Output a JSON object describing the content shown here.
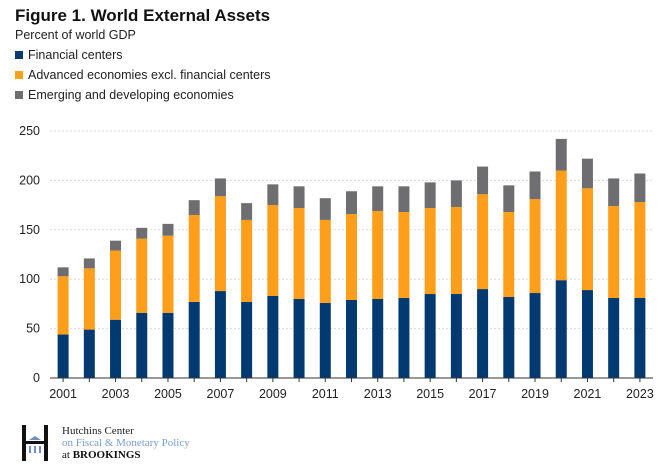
{
  "chart_data": {
    "type": "bar",
    "stacked": true,
    "title": "Figure 1. World External Assets",
    "subtitle": "Percent of world GDP",
    "xlabel": "",
    "ylabel": "",
    "ylim": [
      0,
      250
    ],
    "yticks": [
      0,
      50,
      100,
      150,
      200,
      250
    ],
    "grid": true,
    "legend_position": "top-left",
    "categories": [
      "2001",
      "2002",
      "2003",
      "2004",
      "2005",
      "2006",
      "2007",
      "2008",
      "2009",
      "2010",
      "2011",
      "2012",
      "2013",
      "2014",
      "2015",
      "2016",
      "2017",
      "2018",
      "2019",
      "2020",
      "2021",
      "2022",
      "2023"
    ],
    "xtick_labels": [
      "2001",
      "2003",
      "2005",
      "2007",
      "2009",
      "2011",
      "2013",
      "2015",
      "2017",
      "2019",
      "2021",
      "2023"
    ],
    "series": [
      {
        "name": "Financial centers",
        "color": "#003a70",
        "values": [
          44,
          49,
          59,
          66,
          66,
          77,
          88,
          77,
          83,
          80,
          76,
          79,
          80,
          81,
          85,
          85,
          90,
          82,
          86,
          99,
          89,
          81,
          81
        ]
      },
      {
        "name": "Advanced economies excl. financial centers",
        "color": "#ff9e1b",
        "values": [
          59,
          62,
          70,
          75,
          78,
          88,
          96,
          83,
          92,
          92,
          84,
          87,
          89,
          87,
          87,
          88,
          96,
          86,
          95,
          111,
          103,
          93,
          97
        ]
      },
      {
        "name": "Emerging and developing economies",
        "color": "#6e6e70",
        "values": [
          9,
          10,
          10,
          11,
          12,
          15,
          18,
          17,
          21,
          22,
          22,
          23,
          25,
          26,
          26,
          27,
          28,
          27,
          28,
          32,
          30,
          28,
          29
        ]
      }
    ]
  },
  "footer": {
    "line1": "Hutchins Center",
    "line2": "on Fiscal & Monetary Policy",
    "line3_prefix": "at ",
    "line3_brand": "BROOKINGS"
  }
}
